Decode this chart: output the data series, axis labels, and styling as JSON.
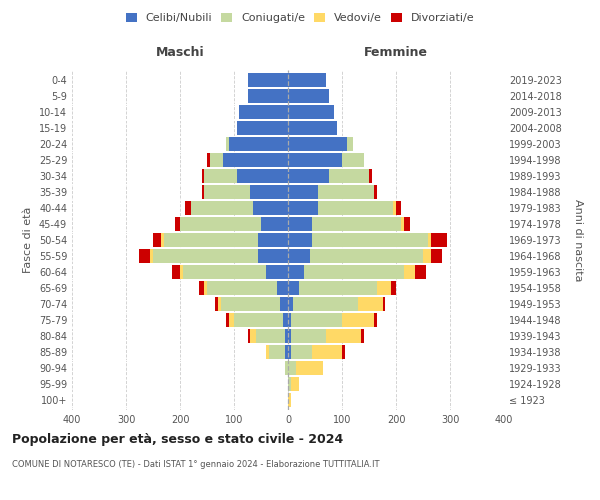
{
  "age_groups": [
    "100+",
    "95-99",
    "90-94",
    "85-89",
    "80-84",
    "75-79",
    "70-74",
    "65-69",
    "60-64",
    "55-59",
    "50-54",
    "45-49",
    "40-44",
    "35-39",
    "30-34",
    "25-29",
    "20-24",
    "15-19",
    "10-14",
    "5-9",
    "0-4"
  ],
  "birth_years": [
    "≤ 1923",
    "1924-1928",
    "1929-1933",
    "1934-1938",
    "1939-1943",
    "1944-1948",
    "1949-1953",
    "1954-1958",
    "1959-1963",
    "1964-1968",
    "1969-1973",
    "1974-1978",
    "1979-1983",
    "1984-1988",
    "1989-1993",
    "1994-1998",
    "1999-2003",
    "2004-2008",
    "2009-2013",
    "2014-2018",
    "2019-2023"
  ],
  "males": {
    "celibe": [
      0,
      0,
      0,
      5,
      5,
      10,
      15,
      20,
      40,
      55,
      55,
      50,
      65,
      70,
      95,
      120,
      110,
      95,
      90,
      75,
      75
    ],
    "coniugato": [
      0,
      0,
      5,
      30,
      55,
      90,
      110,
      130,
      155,
      195,
      175,
      150,
      115,
      85,
      60,
      25,
      5,
      0,
      0,
      0,
      0
    ],
    "vedovo": [
      0,
      0,
      0,
      5,
      10,
      10,
      5,
      5,
      5,
      5,
      5,
      0,
      0,
      0,
      0,
      0,
      0,
      0,
      0,
      0,
      0
    ],
    "divorziato": [
      0,
      0,
      0,
      0,
      5,
      5,
      5,
      10,
      15,
      20,
      15,
      10,
      10,
      5,
      5,
      5,
      0,
      0,
      0,
      0,
      0
    ]
  },
  "females": {
    "nubile": [
      0,
      0,
      0,
      5,
      5,
      5,
      10,
      20,
      30,
      40,
      45,
      45,
      55,
      55,
      75,
      100,
      110,
      90,
      85,
      75,
      70
    ],
    "coniugata": [
      0,
      5,
      15,
      40,
      65,
      95,
      120,
      145,
      185,
      210,
      215,
      165,
      140,
      105,
      75,
      40,
      10,
      0,
      0,
      0,
      0
    ],
    "vedova": [
      5,
      15,
      50,
      55,
      65,
      60,
      45,
      25,
      20,
      15,
      5,
      5,
      5,
      0,
      0,
      0,
      0,
      0,
      0,
      0,
      0
    ],
    "divorziata": [
      0,
      0,
      0,
      5,
      5,
      5,
      5,
      10,
      20,
      20,
      30,
      10,
      10,
      5,
      5,
      0,
      0,
      0,
      0,
      0,
      0
    ]
  },
  "colors": {
    "celibe": "#4472c4",
    "coniugato": "#c5d9a0",
    "vedovo": "#ffd966",
    "divorziato": "#cc0000"
  },
  "title": "Popolazione per età, sesso e stato civile - 2024",
  "subtitle": "COMUNE DI NOTARESCO (TE) - Dati ISTAT 1° gennaio 2024 - Elaborazione TUTTITALIA.IT",
  "xlabel_left": "Maschi",
  "xlabel_right": "Femmine",
  "ylabel_left": "Fasce di età",
  "ylabel_right": "Anni di nascita",
  "xlim": 400,
  "background_color": "#ffffff",
  "grid_color": "#cccccc",
  "legend_labels": [
    "Celibi/Nubili",
    "Coniugati/e",
    "Vedovi/e",
    "Divorziati/e"
  ]
}
